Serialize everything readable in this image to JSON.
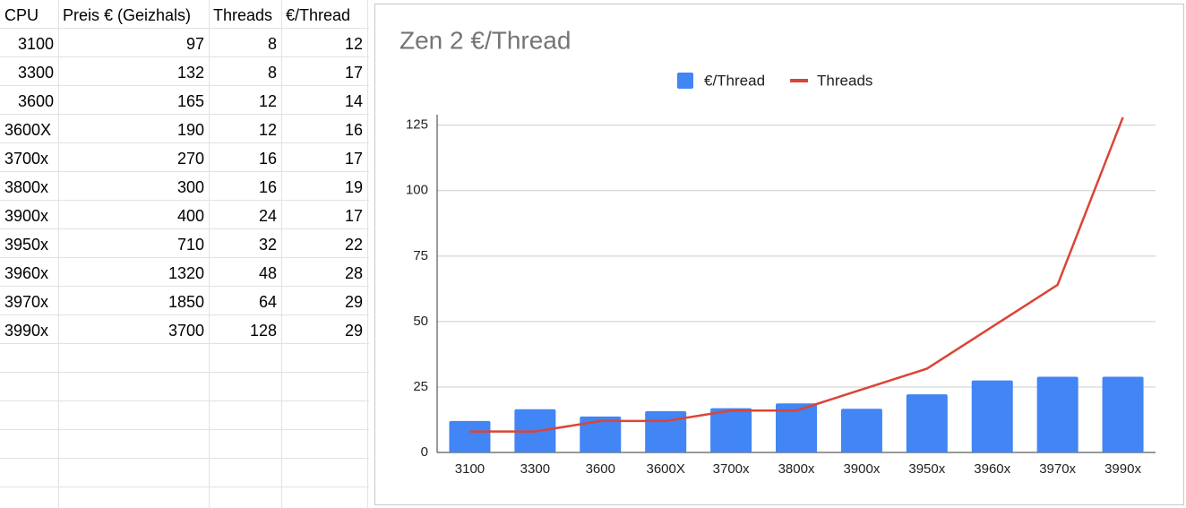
{
  "table": {
    "header": [
      "CPU",
      "Preis € (Geizhals)",
      "Threads",
      "€/Thread"
    ],
    "rows": [
      [
        3100,
        97,
        8,
        12
      ],
      [
        3300,
        132,
        8,
        17
      ],
      [
        3600,
        165,
        12,
        14
      ],
      [
        "3600X",
        190,
        12,
        16
      ],
      [
        "3700x",
        270,
        16,
        17
      ],
      [
        "3800x",
        300,
        16,
        19
      ],
      [
        "3900x",
        400,
        24,
        17
      ],
      [
        "3950x",
        710,
        32,
        22
      ],
      [
        "3960x",
        1320,
        48,
        28
      ],
      [
        "3970x",
        1850,
        64,
        29
      ],
      [
        "3990x",
        3700,
        128,
        29
      ]
    ]
  },
  "chart_data": {
    "type": "combo",
    "title": "Zen 2 €/Thread",
    "categories": [
      "3100",
      "3300",
      "3600",
      "3600X",
      "3700x",
      "3800x",
      "3900x",
      "3950x",
      "3960x",
      "3970x",
      "3990x"
    ],
    "series": [
      {
        "name": "€/Thread",
        "type": "bar",
        "color": "#4285f4",
        "values": [
          12,
          16.5,
          13.75,
          15.8,
          16.9,
          18.75,
          16.7,
          22.2,
          27.5,
          28.9,
          28.9
        ]
      },
      {
        "name": "Threads",
        "type": "line",
        "color": "#db4437",
        "values": [
          8,
          8,
          12,
          12,
          16,
          16,
          24,
          32,
          48,
          64,
          128
        ]
      }
    ],
    "ylim": [
      0,
      129
    ],
    "yticks": [
      0,
      25,
      50,
      75,
      100,
      125
    ],
    "grid": true,
    "legend": "top"
  }
}
